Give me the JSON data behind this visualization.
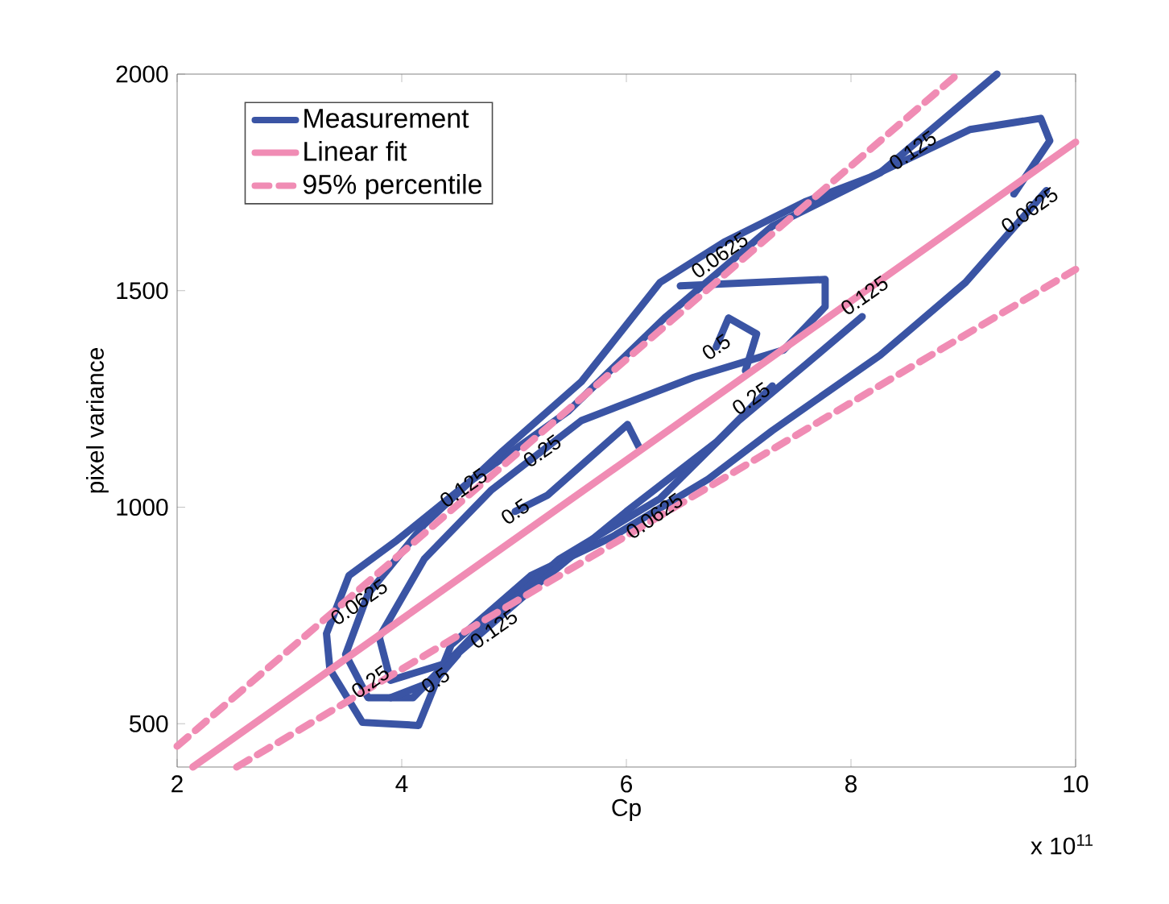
{
  "chart_data": {
    "type": "line",
    "xlabel": "Cp",
    "ylabel": "pixel variance",
    "xlim": [
      2,
      10
    ],
    "ylim": [
      400,
      2000
    ],
    "xticks": [
      2,
      4,
      6,
      8,
      10
    ],
    "yticks": [
      500,
      1000,
      1500,
      2000
    ],
    "legend": "top left",
    "marker": "none",
    "grid": false,
    "series": [
      {
        "name": "Measurement",
        "color": "#3a54a4",
        "line_style": "solid",
        "x": [
          9.3,
          8.26,
          7.3,
          6.34,
          5.48,
          4.58,
          3.96,
          3.53,
          3.33,
          3.36,
          3.65,
          4.15,
          4.44,
          5.15,
          5.87,
          6.73,
          7.3,
          8.26,
          9.02,
          9.74
        ],
        "values": [
          2000,
          1772,
          1649,
          1437,
          1221,
          1054,
          924,
          842,
          708,
          626,
          503,
          496,
          682,
          842,
          931,
          1065,
          1177,
          1351,
          1519,
          1731
        ]
      },
      {
        "color": "#3a54a4",
        "line_style": "solid",
        "x": [
          9.45,
          9.77,
          9.69,
          9.06,
          8.16,
          7.59,
          6.87,
          6.3,
          5.6,
          4.9,
          4.2,
          3.7,
          3.5,
          3.7,
          4.1,
          4.7,
          5.4,
          6.3,
          7.0,
          7.6,
          8.1
        ],
        "values": [
          1723,
          1846,
          1898,
          1872,
          1761,
          1705,
          1612,
          1519,
          1290,
          1130,
          960,
          800,
          660,
          560,
          560,
          720,
          880,
          1020,
          1200,
          1330,
          1440
        ]
      },
      {
        "color": "#3a54a4",
        "line_style": "solid",
        "x": [
          6.48,
          7.77,
          7.77,
          7.4,
          6.6,
          5.6,
          4.8,
          4.2,
          3.8,
          3.9,
          4.4,
          5.2,
          6.0,
          6.8,
          7.3
        ],
        "values": [
          1511,
          1526,
          1463,
          1363,
          1300,
          1200,
          1040,
          880,
          700,
          600,
          640,
          820,
          990,
          1150,
          1280
        ]
      },
      {
        "color": "#3a54a4",
        "line_style": "solid",
        "x": [
          6.8,
          6.91,
          7.16,
          7.06
        ],
        "values": [
          1370,
          1437,
          1400,
          1315
        ]
      },
      {
        "color": "#3a54a4",
        "line_style": "solid",
        "x": [
          5.01,
          5.3,
          6.01,
          6.11
        ],
        "values": [
          990,
          1028,
          1191,
          1140
        ]
      },
      {
        "color": "#3a54a4",
        "line_style": "solid",
        "x": [
          3.9,
          4.3,
          4.5
        ],
        "values": [
          560,
          600,
          660
        ]
      },
      {
        "name": "Linear fit",
        "color": "#f08cb4",
        "line_style": "solid",
        "x": [
          2.14,
          10
        ],
        "values": [
          400,
          1843
        ]
      },
      {
        "name": "95% percentile",
        "color": "#f08cb4",
        "line_style": "dashed",
        "x": [
          2,
          8.95
        ],
        "values": [
          448,
          2000
        ]
      },
      {
        "color": "#f08cb4",
        "line_style": "dashed",
        "x": [
          2.53,
          10
        ],
        "values": [
          400,
          1549
        ]
      }
    ],
    "annotations": [
      "x 10$^{11}$",
      {
        "text": "0.0625",
        "x": 6.83,
        "y": 1582
      },
      {
        "text": "0.125",
        "x": 8.55,
        "y": 1824
      },
      {
        "text": "0.0625",
        "x": 9.59,
        "y": 1686
      },
      {
        "text": "0.125",
        "x": 8.12,
        "y": 1489
      },
      {
        "text": "0.5",
        "x": 6.8,
        "y": 1370
      },
      {
        "text": "0.25",
        "x": 7.11,
        "y": 1251
      },
      {
        "text": "0.125",
        "x": 4.55,
        "y": 1045
      },
      {
        "text": "0.25",
        "x": 5.25,
        "y": 1130
      },
      {
        "text": "0.5",
        "x": 5.01,
        "y": 990
      },
      {
        "text": "0.0625",
        "x": 6.25,
        "y": 980
      },
      {
        "text": "0.0625",
        "x": 3.62,
        "y": 781
      },
      {
        "text": "0.125",
        "x": 4.82,
        "y": 719
      },
      {
        "text": "0.25",
        "x": 3.72,
        "y": 597
      },
      {
        "text": "0.5",
        "x": 4.3,
        "y": 600
      }
    ]
  }
}
